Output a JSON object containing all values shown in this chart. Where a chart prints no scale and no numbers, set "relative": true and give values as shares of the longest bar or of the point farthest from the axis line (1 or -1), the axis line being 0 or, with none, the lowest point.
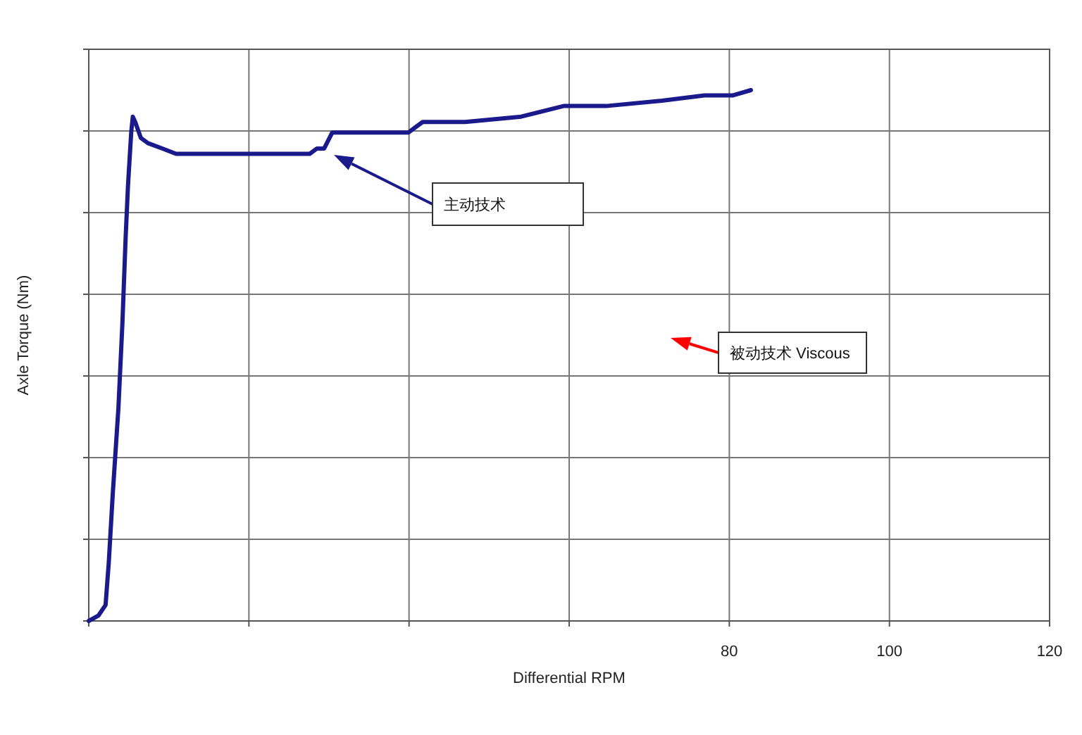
{
  "chart_data": {
    "type": "line",
    "relative": true,
    "xlabel": "Differential RPM",
    "ylabel": "Axle Torque (Nm)",
    "xlim": [
      0,
      120
    ],
    "xticks": [
      {
        "value": 0,
        "label": null
      },
      {
        "value": 20,
        "label": null
      },
      {
        "value": 40,
        "label": null
      },
      {
        "value": 60,
        "label": null
      },
      80,
      100,
      120
    ],
    "grid": true,
    "marker": "none",
    "line_style": "solid",
    "x": [
      0,
      1.2,
      2.1,
      2.5,
      3.0,
      3.7,
      4.2,
      4.6,
      4.9,
      5.3,
      5.5,
      5.8,
      6.5,
      7.4,
      9.2,
      10.9,
      12.7,
      17.1,
      20.6,
      25.0,
      25.9,
      26.7,
      27.6,
      28.5,
      29.4,
      30.4,
      34.7,
      39.9,
      40.8,
      41.7,
      47.0,
      54.0,
      59.3,
      64.6,
      71.6,
      76.9,
      80.4,
      82.7
    ],
    "series": [
      {
        "color": "#1a1a8c",
        "values": [
          0,
          0.01,
          0.03,
          0.11,
          0.24,
          0.4,
          0.56,
          0.72,
          0.82,
          0.92,
          0.95,
          0.94,
          0.91,
          0.9,
          0.89,
          0.88,
          0.88,
          0.88,
          0.88,
          0.88,
          0.88,
          0.88,
          0.88,
          0.89,
          0.89,
          0.92,
          0.92,
          0.92,
          0.93,
          0.94,
          0.94,
          0.95,
          0.97,
          0.97,
          0.98,
          0.99,
          0.99,
          1.0
        ]
      }
    ],
    "annotations": [
      "主动技术",
      "被动技术 Viscous"
    ]
  }
}
